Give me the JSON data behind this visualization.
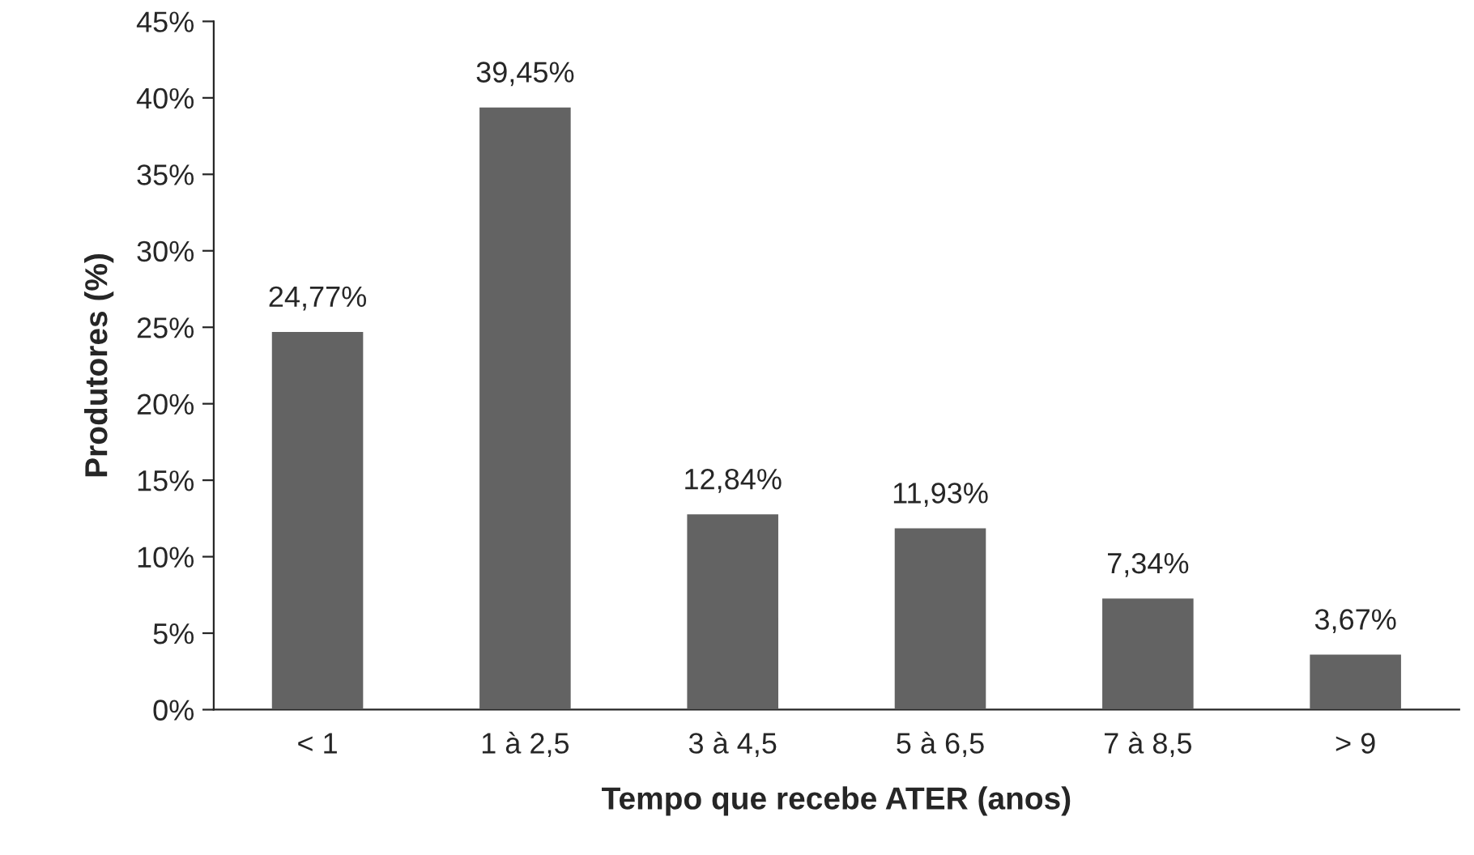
{
  "chart_data": {
    "type": "bar",
    "xlabel": "Tempo que recebe ATER (anos)",
    "ylabel": "Produtores (%)",
    "categories": [
      "< 1",
      "1 à 2,5",
      "3 à 4,5",
      "5 à 6,5",
      "7 à 8,5",
      "> 9"
    ],
    "values": [
      24.77,
      39.45,
      12.84,
      11.93,
      7.34,
      3.67
    ],
    "value_labels": [
      "24,77%",
      "39,45%",
      "12,84%",
      "11,93%",
      "7,34%",
      "3,67%"
    ],
    "color": "#636363",
    "ylim": [
      0,
      45
    ],
    "yticks": [
      {
        "value": 0,
        "label": "0%"
      },
      {
        "value": 5,
        "label": "5%"
      },
      {
        "value": 10,
        "label": "10%"
      },
      {
        "value": 15,
        "label": "15%"
      },
      {
        "value": 20,
        "label": "20%"
      },
      {
        "value": 25,
        "label": "25%"
      },
      {
        "value": 30,
        "label": "30%"
      },
      {
        "value": 35,
        "label": "35%"
      },
      {
        "value": 40,
        "label": "40%"
      },
      {
        "value": 45,
        "label": "45%"
      }
    ],
    "grid": false
  }
}
